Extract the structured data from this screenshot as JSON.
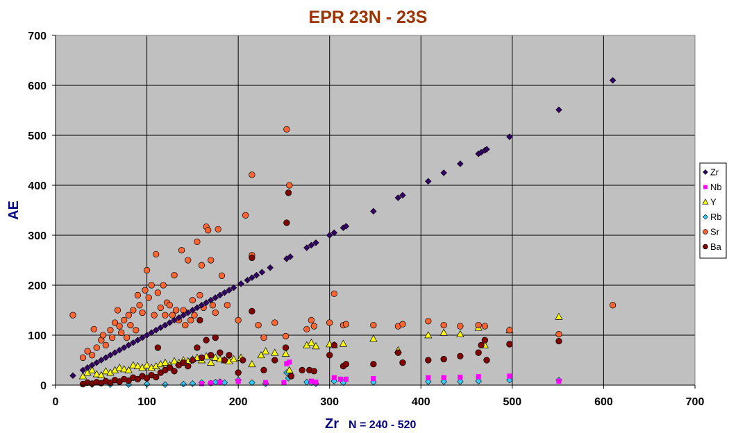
{
  "chart_data": {
    "type": "scatter",
    "title": "EPR 23N - 23S",
    "xlabel": "Zr",
    "xlabel_note": "N = 240 - 520",
    "ylabel": "AE",
    "xlim": [
      0,
      700
    ],
    "ylim": [
      0,
      700
    ],
    "xticks": [
      0,
      100,
      200,
      300,
      400,
      500,
      600,
      700
    ],
    "yticks": [
      0,
      100,
      200,
      300,
      400,
      500,
      600,
      700
    ],
    "grid": true,
    "plot_background": "#C0C0C0",
    "legend_position": "right",
    "series": [
      {
        "name": "Zr",
        "marker": "diamond",
        "color": "#330066",
        "points": [
          [
            19,
            19
          ],
          [
            30,
            30
          ],
          [
            35,
            35
          ],
          [
            40,
            40
          ],
          [
            45,
            45
          ],
          [
            50,
            50
          ],
          [
            55,
            55
          ],
          [
            60,
            60
          ],
          [
            65,
            65
          ],
          [
            70,
            70
          ],
          [
            75,
            75
          ],
          [
            80,
            80
          ],
          [
            85,
            85
          ],
          [
            90,
            90
          ],
          [
            95,
            95
          ],
          [
            100,
            100
          ],
          [
            105,
            105
          ],
          [
            110,
            110
          ],
          [
            115,
            115
          ],
          [
            120,
            120
          ],
          [
            125,
            125
          ],
          [
            130,
            130
          ],
          [
            135,
            135
          ],
          [
            140,
            140
          ],
          [
            145,
            145
          ],
          [
            150,
            150
          ],
          [
            155,
            155
          ],
          [
            160,
            160
          ],
          [
            165,
            165
          ],
          [
            170,
            170
          ],
          [
            175,
            175
          ],
          [
            180,
            180
          ],
          [
            185,
            185
          ],
          [
            190,
            190
          ],
          [
            195,
            195
          ],
          [
            203,
            203
          ],
          [
            210,
            210
          ],
          [
            215,
            215
          ],
          [
            220,
            220
          ],
          [
            226,
            226
          ],
          [
            235,
            235
          ],
          [
            253,
            253
          ],
          [
            257,
            257
          ],
          [
            275,
            275
          ],
          [
            280,
            280
          ],
          [
            285,
            285
          ],
          [
            300,
            300
          ],
          [
            305,
            305
          ],
          [
            315,
            315
          ],
          [
            318,
            318
          ],
          [
            348,
            348
          ],
          [
            375,
            375
          ],
          [
            380,
            380
          ],
          [
            408,
            408
          ],
          [
            425,
            425
          ],
          [
            443,
            443
          ],
          [
            463,
            463
          ],
          [
            466,
            466
          ],
          [
            470,
            470
          ],
          [
            472,
            472
          ],
          [
            497,
            497
          ],
          [
            551,
            551
          ],
          [
            610,
            610
          ]
        ]
      },
      {
        "name": "Nb",
        "marker": "square",
        "color": "#FF00FF",
        "points": [
          [
            160,
            3
          ],
          [
            170,
            4
          ],
          [
            180,
            6
          ],
          [
            200,
            8
          ],
          [
            230,
            5
          ],
          [
            250,
            5
          ],
          [
            253,
            43
          ],
          [
            256,
            46
          ],
          [
            280,
            8
          ],
          [
            285,
            6
          ],
          [
            305,
            15
          ],
          [
            312,
            12
          ],
          [
            318,
            12
          ],
          [
            348,
            13
          ],
          [
            408,
            15
          ],
          [
            425,
            15
          ],
          [
            443,
            16
          ],
          [
            463,
            17
          ],
          [
            497,
            18
          ],
          [
            551,
            8
          ]
        ]
      },
      {
        "name": "Y",
        "marker": "triangle",
        "color": "#FFFF00",
        "points": [
          [
            30,
            18
          ],
          [
            35,
            25
          ],
          [
            40,
            30
          ],
          [
            45,
            22
          ],
          [
            50,
            20
          ],
          [
            55,
            28
          ],
          [
            60,
            25
          ],
          [
            65,
            30
          ],
          [
            70,
            35
          ],
          [
            75,
            32
          ],
          [
            80,
            30
          ],
          [
            85,
            40
          ],
          [
            90,
            38
          ],
          [
            95,
            35
          ],
          [
            100,
            40
          ],
          [
            105,
            35
          ],
          [
            110,
            38
          ],
          [
            115,
            42
          ],
          [
            120,
            45
          ],
          [
            125,
            40
          ],
          [
            130,
            48
          ],
          [
            135,
            45
          ],
          [
            140,
            50
          ],
          [
            145,
            48
          ],
          [
            150,
            52
          ],
          [
            155,
            55
          ],
          [
            160,
            50
          ],
          [
            165,
            58
          ],
          [
            170,
            45
          ],
          [
            175,
            55
          ],
          [
            180,
            52
          ],
          [
            185,
            50
          ],
          [
            190,
            48
          ],
          [
            195,
            52
          ],
          [
            203,
            55
          ],
          [
            215,
            42
          ],
          [
            225,
            60
          ],
          [
            230,
            68
          ],
          [
            240,
            65
          ],
          [
            252,
            63
          ],
          [
            256,
            30
          ],
          [
            275,
            80
          ],
          [
            280,
            85
          ],
          [
            285,
            78
          ],
          [
            300,
            82
          ],
          [
            305,
            80
          ],
          [
            315,
            83
          ],
          [
            348,
            93
          ],
          [
            375,
            70
          ],
          [
            408,
            100
          ],
          [
            425,
            105
          ],
          [
            443,
            102
          ],
          [
            463,
            115
          ],
          [
            470,
            80
          ],
          [
            497,
            110
          ],
          [
            551,
            137
          ]
        ]
      },
      {
        "name": "Rb",
        "marker": "diamond",
        "color": "#33CCFF",
        "points": [
          [
            40,
            1
          ],
          [
            60,
            1
          ],
          [
            80,
            1
          ],
          [
            100,
            2
          ],
          [
            120,
            1
          ],
          [
            140,
            2
          ],
          [
            150,
            3
          ],
          [
            160,
            5
          ],
          [
            170,
            4
          ],
          [
            175,
            6
          ],
          [
            180,
            7
          ],
          [
            185,
            5
          ],
          [
            200,
            10
          ],
          [
            215,
            5
          ],
          [
            230,
            3
          ],
          [
            253,
            25
          ],
          [
            255,
            14
          ],
          [
            257,
            18
          ],
          [
            275,
            6
          ],
          [
            280,
            5
          ],
          [
            285,
            3
          ],
          [
            305,
            8
          ],
          [
            315,
            5
          ],
          [
            348,
            6
          ],
          [
            408,
            7
          ],
          [
            425,
            7
          ],
          [
            443,
            7
          ],
          [
            463,
            8
          ],
          [
            497,
            10
          ],
          [
            551,
            10
          ]
        ]
      },
      {
        "name": "Sr",
        "marker": "circle",
        "color": "#FF6633",
        "points": [
          [
            19,
            140
          ],
          [
            30,
            55
          ],
          [
            35,
            68
          ],
          [
            40,
            60
          ],
          [
            42,
            112
          ],
          [
            45,
            75
          ],
          [
            50,
            90
          ],
          [
            52,
            100
          ],
          [
            55,
            80
          ],
          [
            60,
            110
          ],
          [
            62,
            95
          ],
          [
            65,
            125
          ],
          [
            68,
            150
          ],
          [
            70,
            118
          ],
          [
            72,
            105
          ],
          [
            75,
            130
          ],
          [
            78,
            95
          ],
          [
            80,
            140
          ],
          [
            82,
            120
          ],
          [
            85,
            150
          ],
          [
            88,
            110
          ],
          [
            90,
            180
          ],
          [
            92,
            160
          ],
          [
            95,
            145
          ],
          [
            98,
            190
          ],
          [
            100,
            230
          ],
          [
            102,
            175
          ],
          [
            105,
            200
          ],
          [
            108,
            140
          ],
          [
            110,
            262
          ],
          [
            112,
            185
          ],
          [
            115,
            155
          ],
          [
            118,
            200
          ],
          [
            120,
            140
          ],
          [
            122,
            165
          ],
          [
            125,
            160
          ],
          [
            128,
            140
          ],
          [
            130,
            220
          ],
          [
            132,
            150
          ],
          [
            135,
            130
          ],
          [
            138,
            270
          ],
          [
            140,
            150
          ],
          [
            142,
            120
          ],
          [
            145,
            250
          ],
          [
            148,
            130
          ],
          [
            150,
            170
          ],
          [
            152,
            140
          ],
          [
            155,
            287
          ],
          [
            158,
            180
          ],
          [
            160,
            240
          ],
          [
            162,
            155
          ],
          [
            165,
            317
          ],
          [
            167,
            310
          ],
          [
            170,
            250
          ],
          [
            172,
            160
          ],
          [
            175,
            145
          ],
          [
            178,
            312
          ],
          [
            182,
            219
          ],
          [
            188,
            160
          ],
          [
            200,
            130
          ],
          [
            208,
            340
          ],
          [
            215,
            260
          ],
          [
            215,
            421
          ],
          [
            222,
            120
          ],
          [
            228,
            95
          ],
          [
            240,
            125
          ],
          [
            252,
            98
          ],
          [
            253,
            512
          ],
          [
            256,
            400
          ],
          [
            275,
            112
          ],
          [
            280,
            130
          ],
          [
            283,
            118
          ],
          [
            300,
            125
          ],
          [
            305,
            183
          ],
          [
            315,
            120
          ],
          [
            318,
            122
          ],
          [
            348,
            120
          ],
          [
            375,
            118
          ],
          [
            380,
            122
          ],
          [
            408,
            128
          ],
          [
            425,
            120
          ],
          [
            443,
            118
          ],
          [
            463,
            120
          ],
          [
            470,
            118
          ],
          [
            497,
            110
          ],
          [
            551,
            102
          ],
          [
            610,
            160
          ]
        ]
      },
      {
        "name": "Ba",
        "marker": "circle",
        "color": "#800000",
        "points": [
          [
            30,
            2
          ],
          [
            35,
            5
          ],
          [
            40,
            3
          ],
          [
            45,
            6
          ],
          [
            50,
            4
          ],
          [
            55,
            8
          ],
          [
            60,
            5
          ],
          [
            65,
            10
          ],
          [
            70,
            7
          ],
          [
            75,
            12
          ],
          [
            80,
            9
          ],
          [
            85,
            15
          ],
          [
            90,
            12
          ],
          [
            95,
            18
          ],
          [
            100,
            14
          ],
          [
            105,
            20
          ],
          [
            110,
            16
          ],
          [
            112,
            75
          ],
          [
            115,
            25
          ],
          [
            120,
            30
          ],
          [
            125,
            35
          ],
          [
            130,
            28
          ],
          [
            135,
            40
          ],
          [
            140,
            45
          ],
          [
            145,
            38
          ],
          [
            150,
            50
          ],
          [
            155,
            75
          ],
          [
            158,
            130
          ],
          [
            160,
            55
          ],
          [
            165,
            90
          ],
          [
            170,
            60
          ],
          [
            175,
            95
          ],
          [
            180,
            65
          ],
          [
            185,
            50
          ],
          [
            190,
            60
          ],
          [
            200,
            25
          ],
          [
            205,
            50
          ],
          [
            215,
            148
          ],
          [
            215,
            255
          ],
          [
            228,
            30
          ],
          [
            240,
            50
          ],
          [
            252,
            75
          ],
          [
            253,
            325
          ],
          [
            255,
            385
          ],
          [
            258,
            18
          ],
          [
            270,
            30
          ],
          [
            278,
            30
          ],
          [
            283,
            28
          ],
          [
            300,
            60
          ],
          [
            305,
            80
          ],
          [
            315,
            38
          ],
          [
            318,
            42
          ],
          [
            348,
            42
          ],
          [
            375,
            65
          ],
          [
            380,
            45
          ],
          [
            408,
            50
          ],
          [
            425,
            52
          ],
          [
            443,
            58
          ],
          [
            463,
            65
          ],
          [
            466,
            80
          ],
          [
            470,
            90
          ],
          [
            472,
            50
          ],
          [
            497,
            82
          ],
          [
            551,
            88
          ]
        ]
      }
    ]
  }
}
